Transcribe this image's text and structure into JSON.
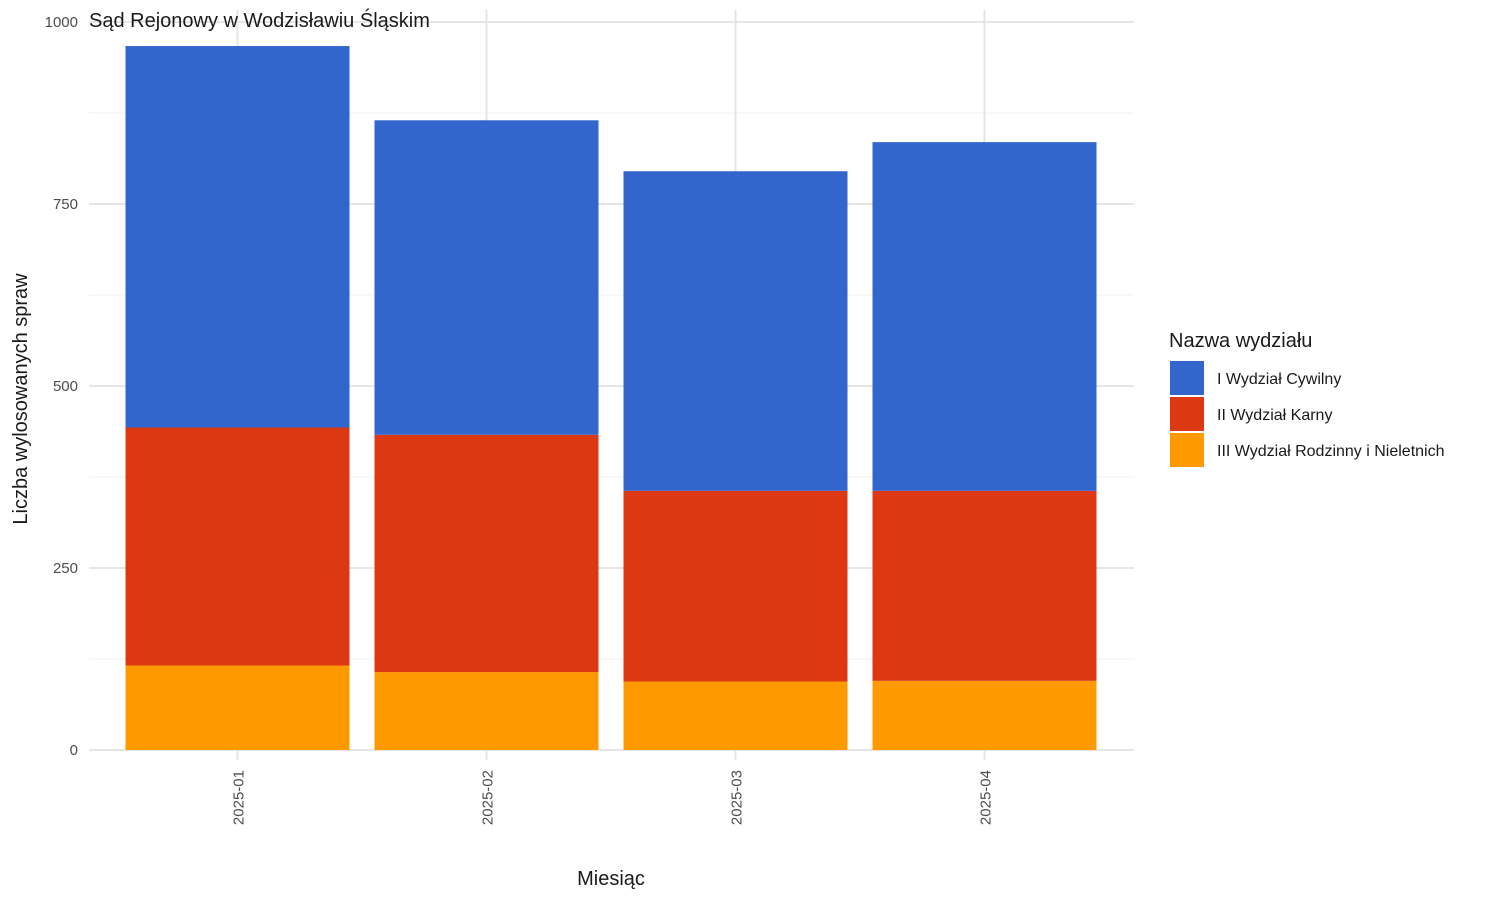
{
  "chart_data": {
    "type": "bar",
    "stacked": true,
    "title": "Sąd Rejonowy w Wodzisławiu Śląskim",
    "xlabel": "Miesiąc",
    "ylabel": "Liczba wylosowanych spraw",
    "ylim": [
      0,
      1000
    ],
    "yticks": [
      0,
      250,
      500,
      750,
      1000
    ],
    "grid": true,
    "legend_position": "right",
    "legend_title": "Nazwa wydziału",
    "categories": [
      "2025-01",
      "2025-02",
      "2025-03",
      "2025-04"
    ],
    "series": [
      {
        "name": "I Wydział Cywilny",
        "color": "#3366CC",
        "values": [
          524,
          432,
          439,
          479
        ]
      },
      {
        "name": "II Wydział Karny",
        "color": "#DC3912",
        "values": [
          327,
          326,
          262,
          261
        ]
      },
      {
        "name": "III Wydział Rodzinny i Nieletnich",
        "color": "#FF9900",
        "values": [
          116,
          107,
          94,
          95
        ]
      }
    ]
  }
}
